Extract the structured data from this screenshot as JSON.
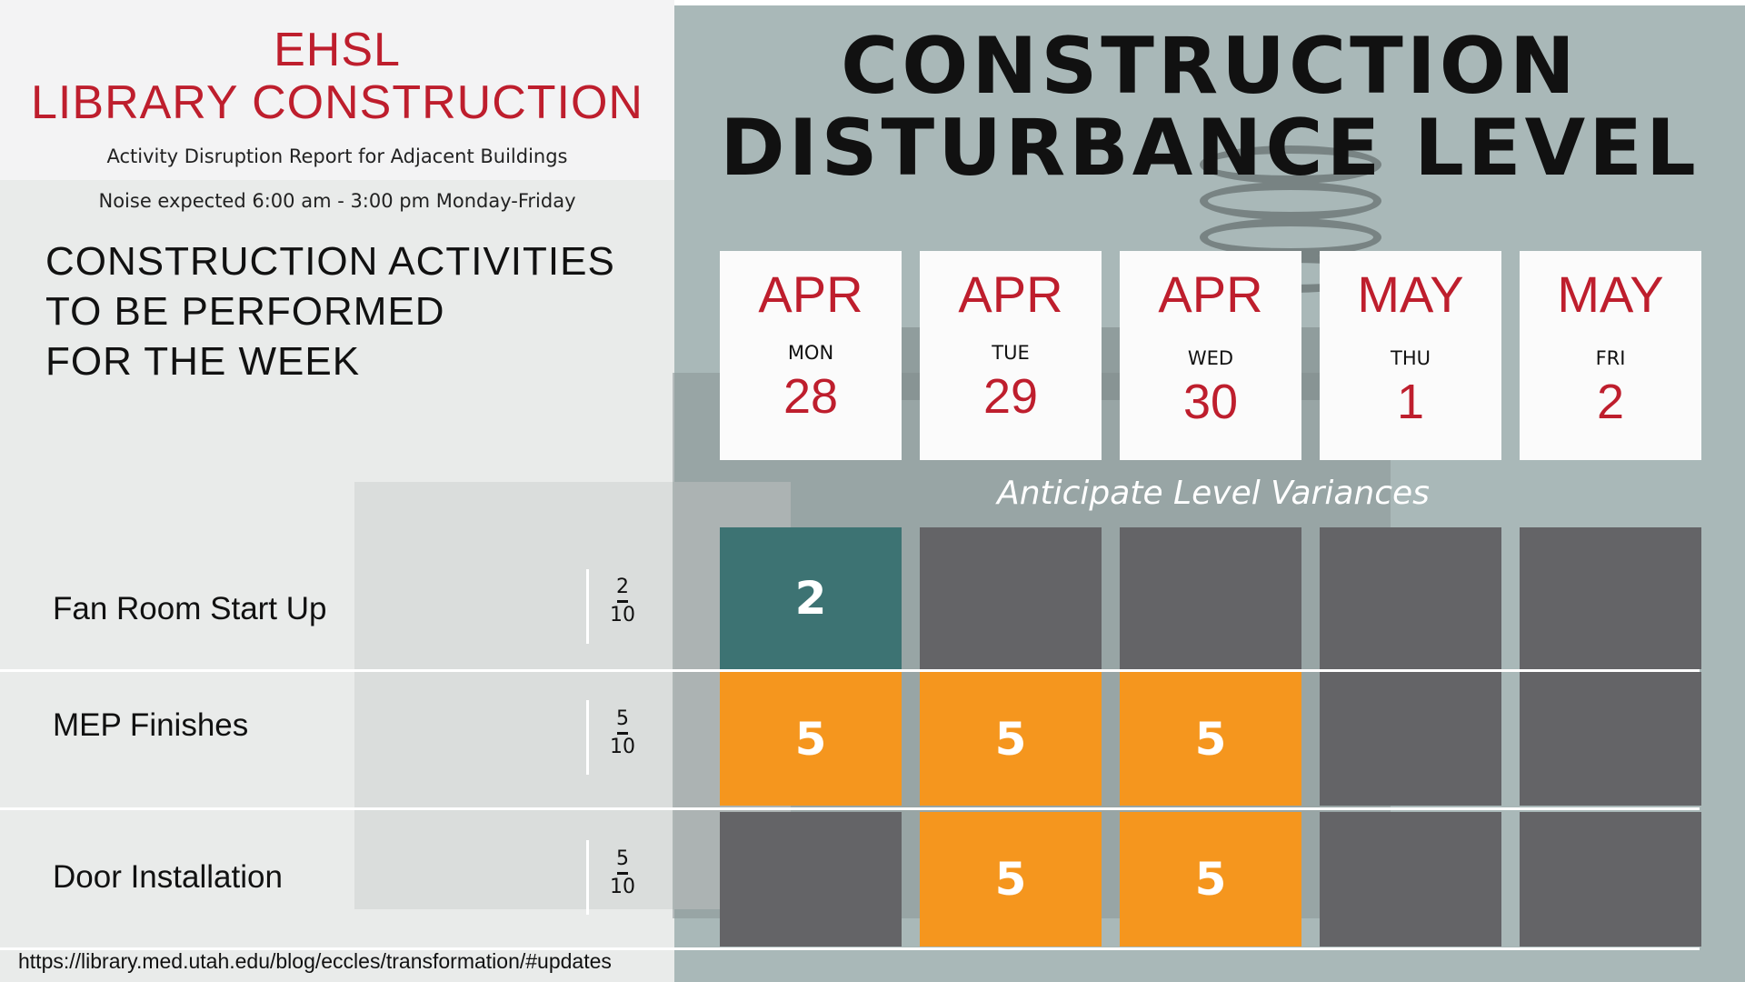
{
  "colors": {
    "accent_red": "#be1e2d",
    "level_low": "#3d7373",
    "level_medium": "#f5961e",
    "level_none": "#646467"
  },
  "header": {
    "title_line1": "EHSL",
    "title_line2": "LIBRARY CONSTRUCTION",
    "subtitle": "Activity Disruption Report for Adjacent Buildings",
    "noise_note": "Noise expected 6:00 am - 3:00 pm Monday-Friday"
  },
  "activities_heading": {
    "line1": "CONSTRUCTION ACTIVITIES",
    "line2": "TO BE PERFORMED",
    "line3": "FOR THE WEEK"
  },
  "main_title": {
    "line1": "CONSTRUCTION",
    "line2": "DISTURBANCE LEVEL"
  },
  "dates": [
    {
      "month": "APR",
      "dow": "MON",
      "day": "28"
    },
    {
      "month": "APR",
      "dow": "TUE",
      "day": "29"
    },
    {
      "month": "APR",
      "dow": "WED",
      "day": "30"
    },
    {
      "month": "MAY",
      "dow": "THU",
      "day": "1"
    },
    {
      "month": "MAY",
      "dow": "FRI",
      "day": "2"
    }
  ],
  "variance_note": "Anticipate Level Variances",
  "activities": [
    {
      "name": "Fan Room Start Up",
      "level": "2",
      "max": "10",
      "days": [
        "2",
        "",
        "",
        "",
        ""
      ],
      "states": [
        "low",
        "none",
        "none",
        "none",
        "none"
      ]
    },
    {
      "name": "MEP Finishes",
      "level": "5",
      "max": "10",
      "days": [
        "5",
        "5",
        "5",
        "",
        ""
      ],
      "states": [
        "medium",
        "medium",
        "medium",
        "none",
        "none"
      ]
    },
    {
      "name": "Door Installation",
      "level": "5",
      "max": "10",
      "days": [
        "",
        "5",
        "5",
        "",
        ""
      ],
      "states": [
        "none",
        "medium",
        "medium",
        "none",
        "none"
      ]
    }
  ],
  "footer": {
    "url": "https://library.med.utah.edu/blog/eccles/transformation/#updates"
  }
}
